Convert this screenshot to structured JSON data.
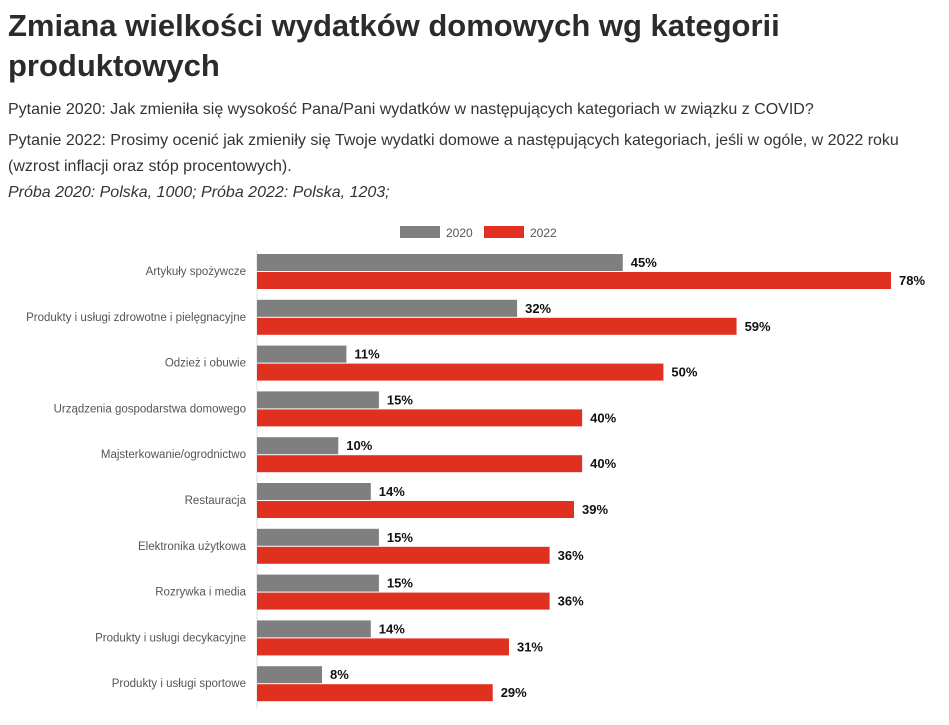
{
  "title": "Zmiana wielkości wydatków domowych wg kategorii produktowych",
  "question_2020": "Pytanie 2020: Jak zmieniła się wysokość Pana/Pani wydatków w następujących kategoriach w związku z COVID?",
  "question_2022": "Pytanie 2022: Prosimy ocenić jak zmieniły się Twoje wydatki domowe a następujących kategoriach, jeśli w ogóle, w 2022 roku (wzrost inflacji oraz stóp procentowych).",
  "sample": "Próba 2020: Polska, 1000; Próba 2022: Polska, 1203;",
  "chart_data": {
    "type": "bar",
    "orientation": "horizontal",
    "categories": [
      "Artykuły spożywcze",
      "Produkty i usługi zdrowotne i pielęgnacyjne",
      "Odzież i obuwie",
      "Urządzenia gospodarstwa domowego",
      "Majsterkowanie/ogrodnictwo",
      "Restauracja",
      "Elektronika użytkowa",
      "Rozrywka i media",
      "Produkty i usługi decykacyjne",
      "Produkty i usługi sportowe"
    ],
    "series": [
      {
        "name": "2020",
        "color": "#7f7f7f",
        "values": [
          45,
          32,
          11,
          15,
          10,
          14,
          15,
          15,
          14,
          8
        ]
      },
      {
        "name": "2022",
        "color": "#e03020",
        "values": [
          78,
          59,
          50,
          40,
          40,
          39,
          36,
          36,
          31,
          29
        ]
      }
    ],
    "value_format": "%",
    "legend": "top",
    "grid": false,
    "xlim": [
      0,
      80
    ]
  }
}
